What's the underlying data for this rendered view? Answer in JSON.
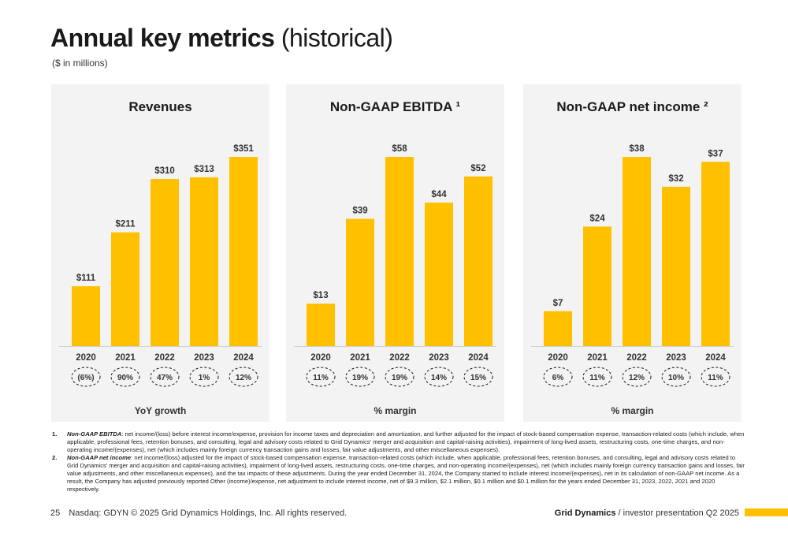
{
  "page": {
    "title_bold": "Annual key metrics",
    "title_light": "(historical)",
    "subtitle": "($ in millions)"
  },
  "colors": {
    "bar": "#ffc000",
    "panel": "#f3f3f3",
    "accent": "#ffc000"
  },
  "chart_data": [
    {
      "type": "bar",
      "title": "Revenues",
      "categories": [
        "2020",
        "2021",
        "2022",
        "2023",
        "2024"
      ],
      "values": [
        111,
        211,
        310,
        313,
        351
      ],
      "value_labels": [
        "$111",
        "$211",
        "$310",
        "$313",
        "$351"
      ],
      "ylim": [
        0,
        351
      ],
      "footer_values": [
        "(6%)",
        "90%",
        "47%",
        "1%",
        "12%"
      ],
      "footer_label": "YoY growth"
    },
    {
      "type": "bar",
      "title": "Non-GAAP EBITDA ¹",
      "categories": [
        "2020",
        "2021",
        "2022",
        "2023",
        "2024"
      ],
      "values": [
        13,
        39,
        58,
        44,
        52
      ],
      "value_labels": [
        "$13",
        "$39",
        "$58",
        "$44",
        "$52"
      ],
      "ylim": [
        0,
        58
      ],
      "footer_values": [
        "11%",
        "19%",
        "19%",
        "14%",
        "15%"
      ],
      "footer_label": "% margin"
    },
    {
      "type": "bar",
      "title": "Non-GAAP net income ²",
      "categories": [
        "2020",
        "2021",
        "2022",
        "2023",
        "2024"
      ],
      "values": [
        7,
        24,
        38,
        32,
        37
      ],
      "value_labels": [
        "$7",
        "$24",
        "$38",
        "$32",
        "$37"
      ],
      "ylim": [
        0,
        38
      ],
      "footer_values": [
        "6%",
        "11%",
        "12%",
        "10%",
        "11%"
      ],
      "footer_label": "% margin"
    }
  ],
  "footnotes": [
    {
      "num": "1.",
      "term": "Non-GAAP EBITDA",
      "text": ": net income/(loss) before interest income/expense, provision for income taxes and depreciation and amortization, and further adjusted for the impact of stock-based compensation expense, transaction-related costs (which include, when applicable, professional fees, retention bonuses, and consulting, legal and advisory costs related to Grid Dynamics' merger and acquisition and capital-raising activities), impairment of long-lived assets, restructuring costs, one-time charges, and non-operating income/(expenses), net (which includes mainly foreign currency transaction gains and losses, fair value adjustments, and other miscellaneous expenses)."
    },
    {
      "num": "2.",
      "term": "Non-GAAP net income",
      "text": ": net income/(loss) adjusted for the impact of stock-based compensation expense, transaction-related costs (which include, when applicable, professional fees, retention bonuses, and consulting, legal and advisory costs related to Grid Dynamics' merger and acquisition and capital-raising activities), impairment of long-lived assets, restructuring costs, one-time charges, and non-operating income/(expenses), net (which includes mainly foreign currency transaction gains and losses, fair value adjustments, and other miscellaneous expenses), and the tax impacts of these adjustments. During the year ended December 31, 2024, the Company started to include interest income/(expenses), net in its calculation of non-GAAP net income. As a result, the Company has adjusted previously reported Other (income)/expense, net adjustment to include interest income, net of $9.3 million, $2.1 million, $0.1 million and $0.1 million for the years ended December 31, 2023, 2022, 2021 and 2020 respectively."
    }
  ],
  "footer": {
    "page_number": "25",
    "copyright": "Nasdaq: GDYN © 2025 Grid Dynamics Holdings, Inc. All rights reserved.",
    "brand": "Grid Dynamics",
    "separator": "/",
    "presentation": "investor presentation Q2 2025"
  }
}
